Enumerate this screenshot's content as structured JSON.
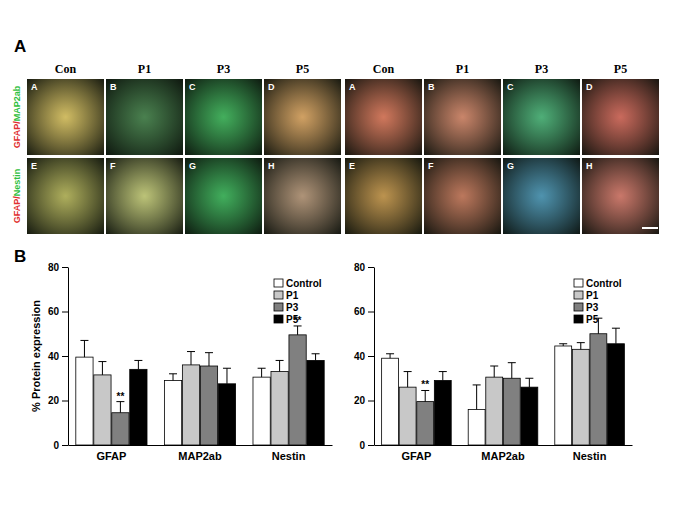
{
  "figure": {
    "panel_labels": [
      "A",
      "B"
    ],
    "image_grid": {
      "columns": [
        "Con",
        "P1",
        "P3",
        "P5"
      ],
      "row_labels": [
        [
          "GFAP/",
          "MAP2ab"
        ],
        [
          "GFAP/",
          "Nestin"
        ]
      ],
      "panel_letters": [
        "A",
        "B",
        "C",
        "D",
        "E",
        "F",
        "G",
        "H"
      ]
    }
  },
  "chart_data": [
    {
      "type": "bar",
      "categories": [
        "GFAP",
        "MAP2ab",
        "Nestin"
      ],
      "y_label": "% Protein expression",
      "ylim": [
        0,
        80
      ],
      "yticks": [
        0,
        20,
        40,
        60,
        80
      ],
      "grid": false,
      "legend": "top-right",
      "series": [
        {
          "name": "Control",
          "color": "#ffffff",
          "values": [
            39.5,
            29,
            30.5
          ],
          "errors": [
            7.5,
            3,
            4
          ],
          "annotations": [
            null,
            null,
            null
          ]
        },
        {
          "name": "P1",
          "color": "#c8c8c8",
          "values": [
            31.5,
            36,
            33
          ],
          "errors": [
            6,
            6,
            5
          ],
          "annotations": [
            null,
            null,
            null
          ]
        },
        {
          "name": "P3",
          "color": "#808080",
          "values": [
            14.5,
            35.5,
            49.5
          ],
          "errors": [
            5,
            6,
            4
          ],
          "annotations": [
            "**",
            null,
            "**"
          ]
        },
        {
          "name": "P5",
          "color": "#000000",
          "values": [
            34,
            27.5,
            38
          ],
          "errors": [
            4,
            7,
            3
          ],
          "annotations": [
            null,
            null,
            null
          ]
        }
      ]
    },
    {
      "type": "bar",
      "categories": [
        "GFAP",
        "MAP2ab",
        "Nestin"
      ],
      "ylim": [
        0,
        80
      ],
      "yticks": [
        0,
        20,
        40,
        60,
        80
      ],
      "grid": false,
      "legend": "top-right",
      "series": [
        {
          "name": "Control",
          "color": "#ffffff",
          "values": [
            39,
            16,
            44.5
          ],
          "errors": [
            2,
            11,
            1
          ],
          "annotations": [
            null,
            null,
            null
          ]
        },
        {
          "name": "P1",
          "color": "#c8c8c8",
          "values": [
            26,
            30.5,
            43
          ],
          "errors": [
            7,
            5,
            3
          ],
          "annotations": [
            null,
            null,
            null
          ]
        },
        {
          "name": "P3",
          "color": "#808080",
          "values": [
            19.5,
            30,
            50
          ],
          "errors": [
            5,
            7,
            7
          ],
          "annotations": [
            "**",
            null,
            null
          ]
        },
        {
          "name": "P5",
          "color": "#000000",
          "values": [
            29,
            26,
            45.5
          ],
          "errors": [
            4,
            4,
            7
          ],
          "annotations": [
            null,
            null,
            null
          ]
        }
      ]
    }
  ]
}
